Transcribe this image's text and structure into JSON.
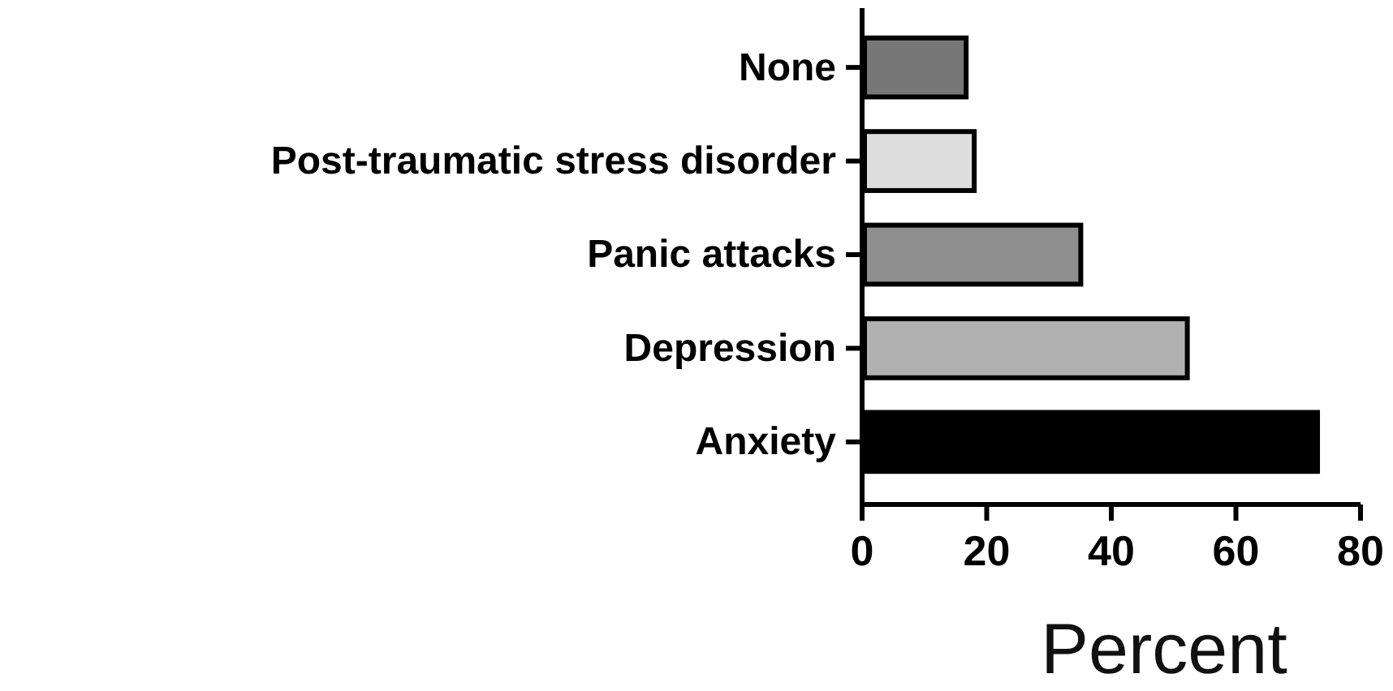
{
  "chart_data": {
    "type": "bar",
    "orientation": "horizontal",
    "xlabel": "Percent",
    "categories": [
      "None",
      "Post-traumatic stress disorder",
      "Panic attacks",
      "Depression",
      "Anxiety"
    ],
    "values": [
      16.7,
      18,
      35.1,
      52.2,
      73.1
    ],
    "colors": [
      "#777777",
      "#dddddd",
      "#8e8e8e",
      "#b0b0b0",
      "#000000"
    ],
    "xlim": [
      0,
      80
    ],
    "xticks": [
      0,
      20,
      40,
      60,
      80
    ],
    "grid": false
  }
}
